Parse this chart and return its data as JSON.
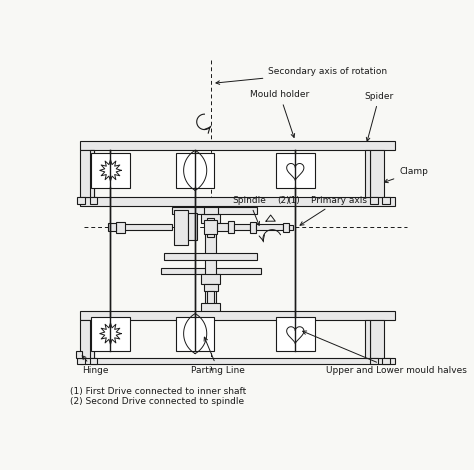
{
  "bg_color": "#f8f8f5",
  "line_color": "#1a1a1a",
  "annotations": {
    "secondary_axis": "Secondary axis of rotation",
    "mould_holder": "Mould holder",
    "spider": "Spider",
    "clamp": "Clamp",
    "spindle": "Spindle",
    "label_2": "(2)",
    "label_1": "(1)",
    "primary_axis": "Primary axis",
    "hinge": "Hinge",
    "parting_line": "Parting Line",
    "upper_lower": "Upper and Lower mould halves",
    "footnote1": "(1) First Drive connected to inner shaft",
    "footnote2": "(2) Second Drive connected to spindle"
  }
}
